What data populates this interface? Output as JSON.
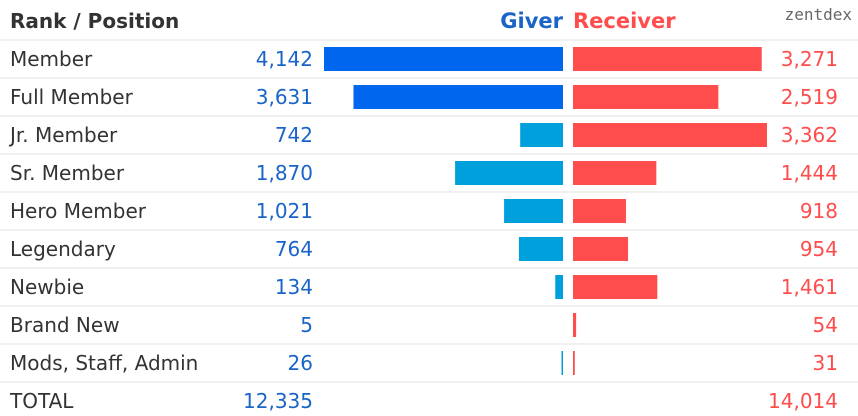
{
  "header": {
    "rank_label": "Rank / Position",
    "giver_label": "Giver",
    "receiver_label": "Receiver",
    "brand": "zentdex"
  },
  "colors": {
    "giver_primary": "#0066ee",
    "giver_secondary": "#00a0dc",
    "receiver": "#ff4d4d",
    "giver_text": "#1a64c8",
    "receiver_text": "#ff4d4d",
    "separator": "#e2e2e2"
  },
  "chart_data": {
    "type": "bar",
    "title": "",
    "xlabel": "",
    "ylabel": "",
    "categories": [
      "Member",
      "Full Member",
      "Jr. Member",
      "Sr. Member",
      "Hero Member",
      "Legendary",
      "Newbie",
      "Brand New",
      "Mods, Staff, Admin"
    ],
    "series": [
      {
        "name": "Giver",
        "values": [
          4142,
          3631,
          742,
          1870,
          1021,
          764,
          134,
          5,
          26
        ],
        "display": [
          "4,142",
          "3,631",
          "742",
          "1,870",
          "1,021",
          "764",
          "134",
          "5",
          "26"
        ],
        "color": "#00a0dc"
      },
      {
        "name": "Receiver",
        "values": [
          3271,
          2519,
          3362,
          1444,
          918,
          954,
          1461,
          54,
          31
        ],
        "display": [
          "3,271",
          "2,519",
          "3,362",
          "1,444",
          "918",
          "954",
          "1,461",
          "54",
          "31"
        ],
        "color": "#ff4d4d"
      }
    ],
    "totals": {
      "label": "TOTAL",
      "giver": "12,335",
      "receiver": "14,014"
    },
    "legend": "top-center",
    "grid": false
  }
}
